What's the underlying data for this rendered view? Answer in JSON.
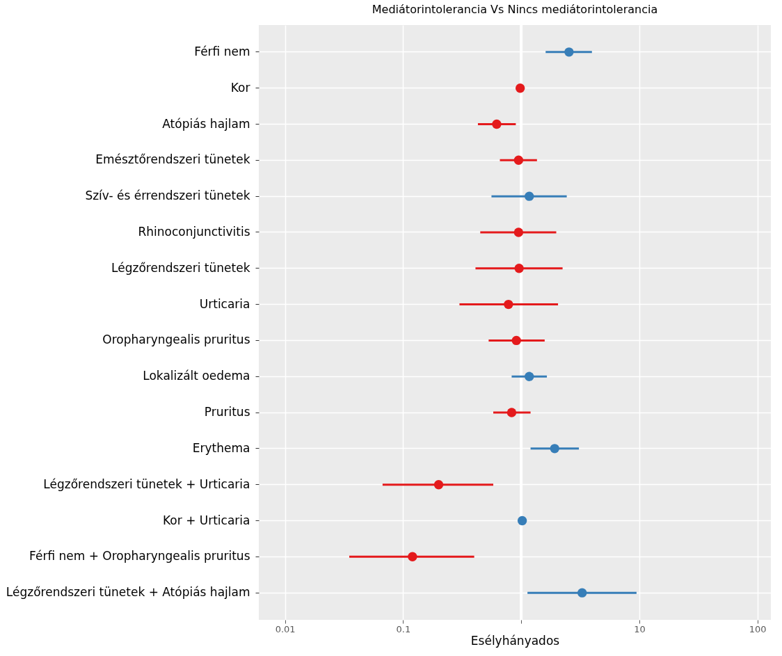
{
  "chart_data": {
    "type": "scatter",
    "orientation": "horizontal",
    "title": "Mediátorintolerancia Vs Nincs mediátorintolerancia",
    "xlabel": "Esélyhányados",
    "categories": [
      "Férfi nem",
      "Kor",
      "Atópiás hajlam",
      "Emésztőrendszeri tünetek",
      "Szív- és érrendszeri  tünetek",
      "Rhinoconjunctivitis",
      "Légzőrendszeri tünetek",
      "Urticaria",
      "Oropharyngealis pruritus",
      "Lokalizált oedema",
      "Pruritus",
      "Erythema",
      "Légzőrendszeri tünetek + Urticaria",
      "Kor + Urticaria",
      "Férfi nem + Oropharyngealis pruritus",
      "Légzőrendszeri tünetek + Atópiás hajlam"
    ],
    "values": [
      2.54,
      0.98,
      0.62,
      0.95,
      1.17,
      0.95,
      0.96,
      0.78,
      0.91,
      1.17,
      0.83,
      1.92,
      0.2,
      1.02,
      0.12,
      3.28
    ],
    "errors": [
      [
        1.61,
        3.97
      ],
      null,
      [
        0.43,
        0.9
      ],
      [
        0.66,
        1.36
      ],
      [
        0.56,
        2.43
      ],
      [
        0.45,
        1.98
      ],
      [
        0.41,
        2.24
      ],
      [
        0.3,
        2.05
      ],
      [
        0.53,
        1.58
      ],
      [
        0.83,
        1.65
      ],
      [
        0.58,
        1.2
      ],
      [
        1.2,
        3.08
      ],
      [
        0.067,
        0.58
      ],
      null,
      [
        0.035,
        0.4
      ],
      [
        1.13,
        9.47
      ]
    ],
    "colors": [
      "#377eb8",
      "#e41a1c",
      "#e41a1c",
      "#e41a1c",
      "#377eb8",
      "#e41a1c",
      "#e41a1c",
      "#e41a1c",
      "#e41a1c",
      "#377eb8",
      "#e41a1c",
      "#377eb8",
      "#e41a1c",
      "#377eb8",
      "#e41a1c",
      "#377eb8"
    ],
    "log": "x",
    "xlim": [
      0.006,
      130
    ],
    "xticks": [
      0.01,
      0.1,
      {
        "value": 1,
        "label": null
      },
      10,
      100
    ],
    "ref_lines": [
      {
        "axis": "x",
        "value": 1,
        "color": "#ffffff"
      }
    ],
    "grid": true,
    "marker": "circle"
  }
}
